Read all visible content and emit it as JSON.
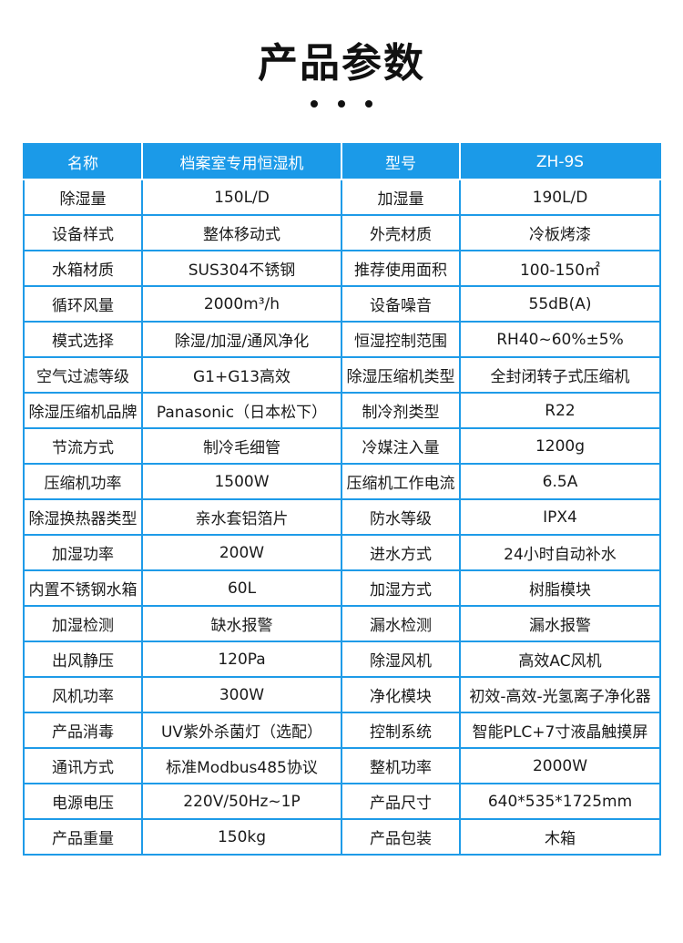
{
  "page_title": "产品参数",
  "header": [
    "名称",
    "档案室专用恒湿机",
    "型号",
    "ZH-9S"
  ],
  "rows": [
    [
      "除湿量",
      "150L/D",
      "加湿量",
      "190L/D"
    ],
    [
      "设备样式",
      "整体移动式",
      "外壳材质",
      "冷板烤漆"
    ],
    [
      "水箱材质",
      "SUS304不锈钢",
      "推荐使用面积",
      "100-150㎡"
    ],
    [
      "循环风量",
      "2000m³/h",
      "设备噪音",
      "55dB(A)"
    ],
    [
      "模式选择",
      "除湿/加湿/通风净化",
      "恒湿控制范围",
      "RH40~60%±5%"
    ],
    [
      "空气过滤等级",
      "G1+G13高效",
      "除湿压缩机类型",
      "全封闭转子式压缩机"
    ],
    [
      "除湿压缩机品牌",
      "Panasonic（日本松下）",
      "制冷剂类型",
      "R22"
    ],
    [
      "节流方式",
      "制冷毛细管",
      "冷媒注入量",
      "1200g"
    ],
    [
      "压缩机功率",
      "1500W",
      "压缩机工作电流",
      "6.5A"
    ],
    [
      "除湿换热器类型",
      "亲水套铝箔片",
      "防水等级",
      "IPX4"
    ],
    [
      "加湿功率",
      "200W",
      "进水方式",
      "24小时自动补水"
    ],
    [
      "内置不锈钢水箱",
      "60L",
      "加湿方式",
      "树脂模块"
    ],
    [
      "加湿检测",
      "缺水报警",
      "漏水检测",
      "漏水报警"
    ],
    [
      "出风静压",
      "120Pa",
      "除湿风机",
      "高效AC风机"
    ],
    [
      "风机功率",
      "300W",
      "净化模块",
      "初效-高效-光氢离子净化器"
    ],
    [
      "产品消毒",
      "UV紫外杀菌灯（选配）",
      "控制系统",
      "智能PLC+7寸液晶触摸屏"
    ],
    [
      "通讯方式",
      "标准Modbus485协议",
      "整机功率",
      "2000W"
    ],
    [
      "电源电压",
      "220V/50Hz~1P",
      "产品尺寸",
      "640*535*1725mm"
    ],
    [
      "产品重量",
      "150kg",
      "产品包装",
      "木箱"
    ]
  ],
  "colors": {
    "accent": "#1b9ae8",
    "header_text": "#ffffff",
    "body_text": "#1a1a1a"
  }
}
